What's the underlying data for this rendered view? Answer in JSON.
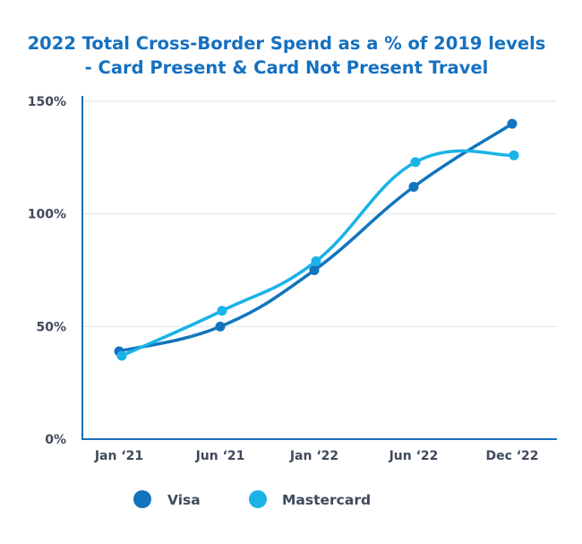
{
  "chart_data": {
    "type": "line",
    "title_lines": [
      "2022 Total Cross-Border Spend as a % of 2019 levels",
      "- Card Present & Card Not Present Travel"
    ],
    "categories": [
      "Jan ‘21",
      "Jun ‘21",
      "Jan ‘22",
      "Jun ‘22",
      "Dec ‘22"
    ],
    "y_ticks": [
      "0%",
      "50%",
      "100%",
      "150%"
    ],
    "ylim": [
      0,
      150
    ],
    "grid": true,
    "legend_placement": "bottom",
    "series": [
      {
        "name": "Visa",
        "color": "#1174bd",
        "values": [
          39,
          50,
          75,
          112,
          140
        ]
      },
      {
        "name": "Mastercard",
        "color": "#1ab3e8",
        "values": [
          37,
          57,
          79,
          123,
          126
        ]
      }
    ],
    "colors": {
      "title": "#1570c0",
      "axis": "#1b6fb5",
      "grid": "#d9e6f0",
      "tick_text": "#3f4a5b"
    }
  }
}
